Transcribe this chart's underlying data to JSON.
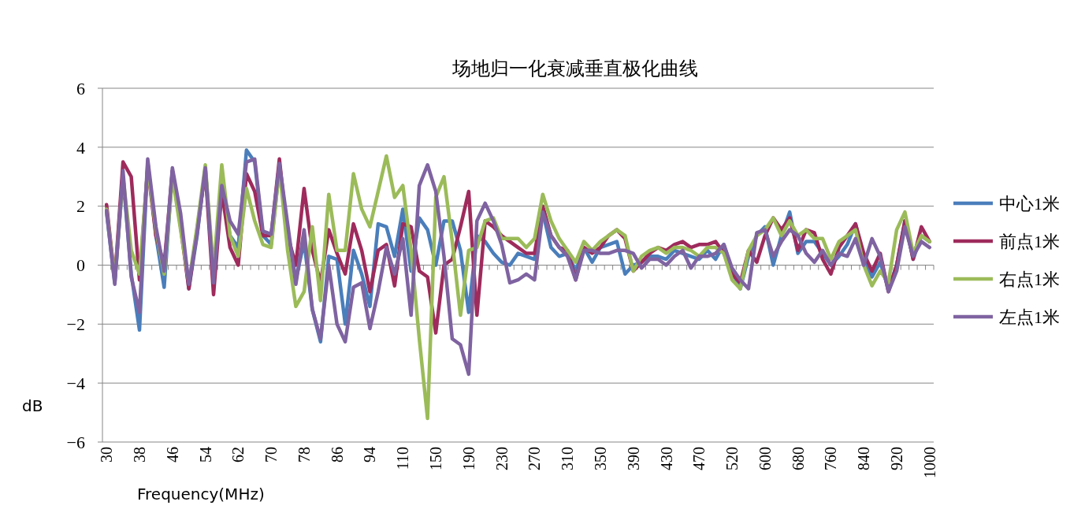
{
  "chart_data": {
    "type": "line",
    "title": "场地归一化衰减垂直极化曲线",
    "xlabel": "Frequency(MHz)",
    "ylabel": "dB",
    "categories": [
      "30",
      null,
      null,
      null,
      "38",
      null,
      null,
      null,
      "46",
      null,
      null,
      null,
      "54",
      null,
      null,
      null,
      "62",
      null,
      null,
      null,
      "70",
      null,
      null,
      null,
      "78",
      null,
      null,
      null,
      "86",
      null,
      null,
      null,
      "94",
      null,
      null,
      null,
      "110",
      null,
      null,
      null,
      "150",
      null,
      null,
      null,
      "190",
      null,
      null,
      null,
      "230",
      null,
      null,
      null,
      "270",
      null,
      null,
      null,
      "310",
      null,
      null,
      null,
      "350",
      null,
      null,
      null,
      "390",
      null,
      null,
      null,
      "430",
      null,
      null,
      null,
      "470",
      null,
      null,
      null,
      "520",
      null,
      null,
      null,
      "600",
      null,
      null,
      null,
      "680",
      null,
      null,
      null,
      "760",
      null,
      null,
      null,
      "840",
      null,
      null,
      null,
      "920",
      null,
      null,
      null,
      "1000"
    ],
    "ylim": [
      -6,
      6
    ],
    "yticks": [
      {
        "value": -6,
        "label": "−6"
      },
      {
        "value": -4,
        "label": "−4"
      },
      {
        "value": -2,
        "label": "−2"
      },
      0,
      2,
      4,
      6
    ],
    "grid": "y",
    "legend": "right",
    "line_style": "solid",
    "series": [
      {
        "name": "中心1米",
        "color": "#4a7ebb",
        "values": [
          1.8,
          -0.6,
          3.0,
          -0.3,
          -2.2,
          3.5,
          1.0,
          -0.75,
          3.2,
          1.5,
          -0.8,
          1.0,
          3.3,
          -0.5,
          2.6,
          1.0,
          0.6,
          3.9,
          3.5,
          1.0,
          0.7,
          3.3,
          1.2,
          -0.5,
          0.8,
          -1.5,
          -2.6,
          0.3,
          0.2,
          -2.0,
          0.5,
          -0.3,
          -1.4,
          1.4,
          1.3,
          0.3,
          1.9,
          -0.2,
          1.6,
          1.2,
          0.0,
          1.5,
          1.5,
          0.5,
          -1.6,
          1.0,
          0.8,
          0.4,
          0.1,
          0.0,
          0.4,
          0.3,
          0.2,
          1.8,
          0.6,
          0.3,
          0.4,
          -0.2,
          0.6,
          0.1,
          0.6,
          0.7,
          0.8,
          -0.3,
          0.0,
          0.1,
          0.3,
          0.3,
          0.2,
          0.5,
          0.4,
          0.3,
          0.2,
          0.5,
          0.2,
          0.7,
          -0.2,
          -0.8,
          0.3,
          1.0,
          1.3,
          0.0,
          1.0,
          1.8,
          0.4,
          0.8,
          0.8,
          0.4,
          0.0,
          0.3,
          0.7,
          1.4,
          0.2,
          -0.4,
          0.1,
          -0.8,
          0.0,
          1.5,
          0.2,
          1.0,
          0.8
        ]
      },
      {
        "name": "前点1米",
        "color": "#9e2b5c",
        "values": [
          2.05,
          -0.5,
          3.5,
          3.0,
          -0.5,
          3.3,
          1.0,
          0.0,
          3.2,
          1.3,
          -0.8,
          1.2,
          3.2,
          -1.0,
          2.5,
          0.6,
          0.0,
          3.1,
          2.5,
          1.0,
          1.0,
          3.6,
          1.0,
          0.0,
          2.6,
          0.5,
          -0.6,
          1.2,
          0.4,
          -0.3,
          1.4,
          0.5,
          -0.9,
          0.5,
          0.7,
          -0.7,
          1.4,
          1.3,
          -0.2,
          -0.4,
          -2.3,
          0.0,
          0.2,
          1.3,
          2.5,
          -1.7,
          1.5,
          1.3,
          1.0,
          0.8,
          0.6,
          0.4,
          0.4,
          2.0,
          1.0,
          0.6,
          0.5,
          -0.5,
          0.6,
          0.4,
          0.6,
          1.0,
          1.2,
          0.9,
          -0.2,
          0.1,
          0.4,
          0.6,
          0.5,
          0.7,
          0.8,
          0.6,
          0.7,
          0.7,
          0.8,
          0.4,
          -0.3,
          -0.6,
          0.5,
          0.1,
          1.0,
          1.6,
          1.2,
          1.6,
          0.5,
          1.2,
          1.1,
          0.2,
          -0.3,
          0.6,
          1.0,
          1.4,
          0.4,
          -0.2,
          0.4,
          -0.9,
          0.0,
          1.5,
          0.2,
          1.3,
          0.8
        ]
      },
      {
        "name": "右点1米",
        "color": "#9bbb59",
        "values": [
          1.9,
          -0.5,
          3.0,
          0.5,
          -0.3,
          3.3,
          1.2,
          -0.3,
          3.0,
          1.2,
          -0.6,
          1.3,
          3.4,
          -0.2,
          3.4,
          1.0,
          0.3,
          2.6,
          1.5,
          0.7,
          0.6,
          3.3,
          0.5,
          -1.4,
          -0.9,
          1.3,
          -1.2,
          2.4,
          0.5,
          0.5,
          3.1,
          1.9,
          1.3,
          2.5,
          3.7,
          2.3,
          2.7,
          0.5,
          -2.5,
          -5.2,
          2.3,
          3.0,
          0.8,
          -1.7,
          0.5,
          0.6,
          1.5,
          1.6,
          0.9,
          0.9,
          0.9,
          0.6,
          0.9,
          2.4,
          1.5,
          0.9,
          0.5,
          0.1,
          0.8,
          0.5,
          0.8,
          1.0,
          1.2,
          1.0,
          -0.2,
          0.3,
          0.5,
          0.6,
          0.4,
          0.6,
          0.6,
          0.5,
          0.3,
          0.6,
          0.6,
          0.4,
          -0.5,
          -0.8,
          0.5,
          1.0,
          1.2,
          1.6,
          1.0,
          1.5,
          1.0,
          1.2,
          0.9,
          0.9,
          0.2,
          0.8,
          1.0,
          1.2,
          0.0,
          -0.7,
          -0.2,
          -0.6,
          1.2,
          1.8,
          0.4,
          1.0,
          0.8
        ]
      },
      {
        "name": "左点1米",
        "color": "#7f63a1",
        "values": [
          1.85,
          -0.65,
          3.2,
          -0.4,
          -1.6,
          3.6,
          1.3,
          -0.2,
          3.3,
          1.75,
          -0.65,
          1.05,
          3.3,
          -0.6,
          2.7,
          1.5,
          1.05,
          3.5,
          3.6,
          1.15,
          1.05,
          3.45,
          1.4,
          -0.65,
          1.2,
          -1.5,
          -2.5,
          0.0,
          -2.0,
          -2.6,
          -0.75,
          -0.6,
          -2.15,
          -0.9,
          0.6,
          -0.3,
          0.9,
          -1.7,
          2.7,
          3.4,
          2.5,
          0.3,
          -2.5,
          -2.7,
          -3.7,
          1.5,
          2.1,
          1.5,
          0.7,
          -0.6,
          -0.5,
          -0.3,
          -0.5,
          1.8,
          1.0,
          0.6,
          0.3,
          -0.5,
          0.5,
          0.5,
          0.4,
          0.4,
          0.5,
          0.5,
          0.4,
          -0.1,
          0.2,
          0.2,
          0.0,
          0.3,
          0.5,
          -0.1,
          0.3,
          0.3,
          0.4,
          0.7,
          -0.1,
          -0.5,
          -0.8,
          1.1,
          1.2,
          0.3,
          0.8,
          1.2,
          1.0,
          0.4,
          0.1,
          0.5,
          0.0,
          0.4,
          0.3,
          0.9,
          0.0,
          0.9,
          0.3,
          -0.9,
          -0.2,
          1.3,
          0.3,
          0.8,
          0.6
        ]
      }
    ]
  }
}
